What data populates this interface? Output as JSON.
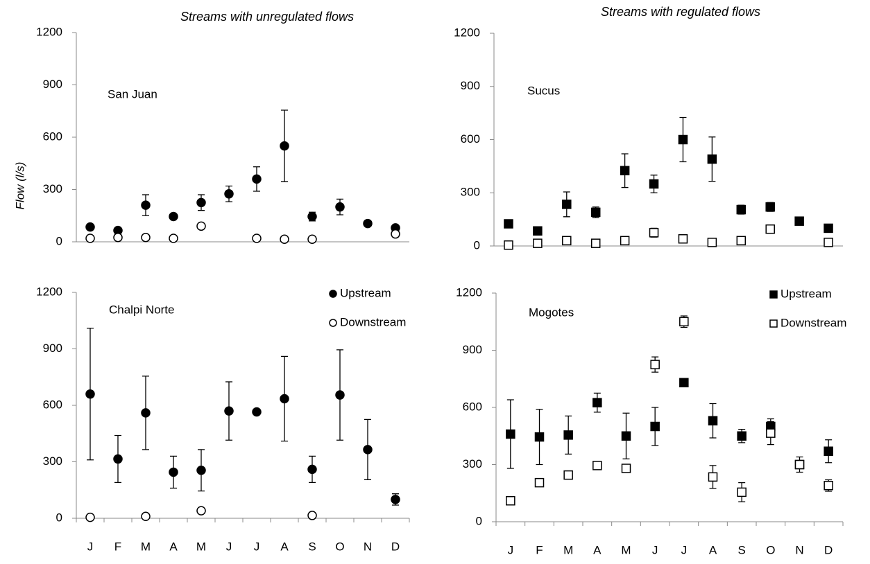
{
  "chart_data": [
    {
      "type": "errorbar",
      "title": "Streams with unregulated flows",
      "subtitle": "San Juan",
      "ylabel": "Flow (l/s)",
      "marker": "circle",
      "ylim": [
        0,
        1200
      ],
      "yticks": [
        0,
        300,
        600,
        900,
        1200
      ],
      "series": [
        {
          "color": "#000000",
          "fill": "#000000",
          "values": [
            85,
            65,
            210,
            145,
            225,
            275,
            360,
            550,
            145,
            200,
            105,
            80
          ],
          "errors": [
            15,
            10,
            60,
            15,
            45,
            45,
            70,
            205,
            25,
            45,
            10,
            10
          ]
        },
        {
          "color": "#000000",
          "fill": "#ffffff",
          "values": [
            20,
            25,
            25,
            20,
            90,
            null,
            20,
            15,
            15,
            null,
            null,
            45
          ],
          "errors": [
            null,
            null,
            null,
            null,
            null,
            null,
            null,
            null,
            null,
            null,
            null,
            15
          ]
        }
      ]
    },
    {
      "type": "errorbar",
      "title": "Streams with regulated flows",
      "subtitle": "Sucus",
      "marker": "square",
      "ylim": [
        0,
        1200
      ],
      "yticks": [
        0,
        300,
        600,
        900,
        1200
      ],
      "series": [
        {
          "color": "#000000",
          "fill": "#000000",
          "values": [
            125,
            85,
            235,
            190,
            425,
            350,
            600,
            490,
            205,
            220,
            140,
            100
          ],
          "errors": [
            15,
            15,
            70,
            30,
            95,
            50,
            125,
            125,
            25,
            25,
            15,
            15
          ]
        },
        {
          "color": "#000000",
          "fill": "#ffffff",
          "values": [
            5,
            15,
            30,
            15,
            30,
            75,
            40,
            20,
            30,
            95,
            null,
            20
          ],
          "errors": [
            null,
            null,
            null,
            null,
            null,
            25,
            null,
            null,
            20,
            null,
            null,
            null
          ]
        }
      ]
    },
    {
      "type": "errorbar",
      "subtitle": "Chalpi Norte",
      "marker": "circle",
      "legend": "upper right",
      "categories": [
        "J",
        "F",
        "M",
        "A",
        "M",
        "J",
        "J",
        "A",
        "S",
        "O",
        "N",
        "D"
      ],
      "ylim": [
        0,
        1200
      ],
      "yticks": [
        0,
        300,
        600,
        900,
        1200
      ],
      "series": [
        {
          "name": "Upstream",
          "color": "#000000",
          "fill": "#000000",
          "values": [
            660,
            315,
            560,
            245,
            255,
            570,
            565,
            635,
            260,
            655,
            365,
            100
          ],
          "errors": [
            350,
            125,
            195,
            85,
            110,
            155,
            10,
            225,
            70,
            240,
            160,
            30
          ]
        },
        {
          "name": "Downstream",
          "color": "#000000",
          "fill": "#ffffff",
          "values": [
            5,
            null,
            10,
            null,
            40,
            null,
            null,
            null,
            15,
            null,
            null,
            null
          ],
          "errors": [
            null,
            null,
            null,
            null,
            null,
            null,
            null,
            null,
            null,
            null,
            null,
            null
          ]
        }
      ]
    },
    {
      "type": "errorbar",
      "subtitle": "Mogotes",
      "marker": "square",
      "legend": "upper right",
      "categories": [
        "J",
        "F",
        "M",
        "A",
        "M",
        "J",
        "J",
        "A",
        "S",
        "O",
        "N",
        "D"
      ],
      "ylim": [
        0,
        1200
      ],
      "yticks": [
        0,
        300,
        600,
        900,
        1200
      ],
      "series": [
        {
          "name": "Upstream",
          "color": "#000000",
          "fill": "#000000",
          "values": [
            460,
            445,
            455,
            625,
            450,
            500,
            730,
            530,
            450,
            500,
            300,
            370
          ],
          "errors": [
            180,
            145,
            100,
            50,
            120,
            100,
            15,
            90,
            35,
            40,
            40,
            60
          ]
        },
        {
          "name": "Downstream",
          "color": "#000000",
          "fill": "#ffffff",
          "values": [
            110,
            205,
            245,
            295,
            280,
            825,
            1050,
            235,
            155,
            465,
            300,
            190
          ],
          "errors": [
            null,
            null,
            null,
            null,
            null,
            40,
            30,
            60,
            50,
            60,
            null,
            30
          ]
        }
      ]
    }
  ]
}
